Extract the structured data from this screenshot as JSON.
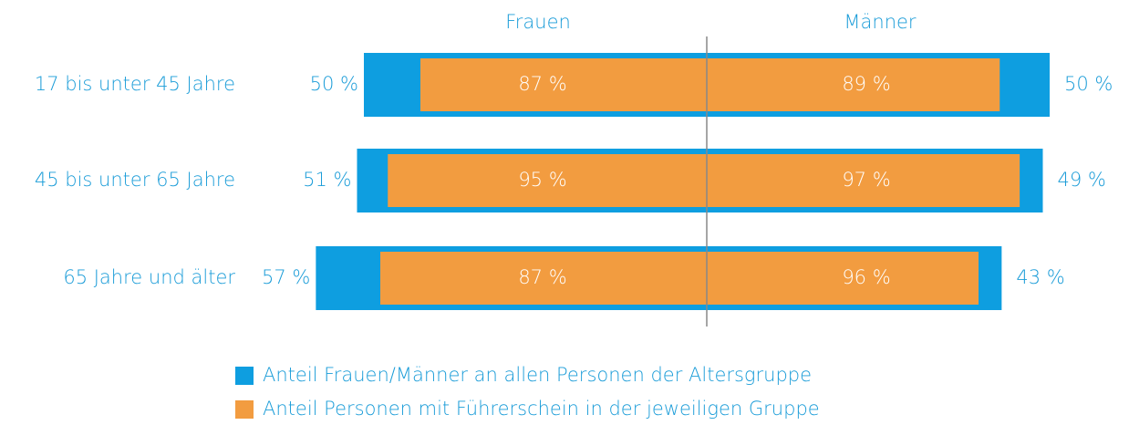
{
  "chart_data": {
    "type": "butterfly",
    "sides": [
      "Frauen",
      "Männer"
    ],
    "categories": [
      "17 bis unter 45 Jahre",
      "45 bis unter 65 Jahre",
      "65 Jahre und älter"
    ],
    "series": [
      {
        "name": "Anteil Frauen/Männer an allen Personen der Altersgruppe",
        "color": "#0e9ee0",
        "values_left": [
          50,
          51,
          57
        ],
        "value_labels_left": [
          "50 %",
          "51 %",
          "57 %"
        ],
        "values_right": [
          50,
          49,
          43
        ],
        "value_labels_right": [
          "50 %",
          "49 %",
          "43 %"
        ]
      },
      {
        "name": "Anteil Personen mit Führerschein in der jeweiligen Gruppe",
        "color": "#f29c40",
        "values_left": [
          87,
          95,
          87
        ],
        "value_labels_left": [
          "87 %",
          "95 %",
          "87 %"
        ],
        "values_right": [
          89,
          97,
          96
        ],
        "value_labels_right": [
          "89 %",
          "97 %",
          "96 %"
        ]
      }
    ]
  }
}
